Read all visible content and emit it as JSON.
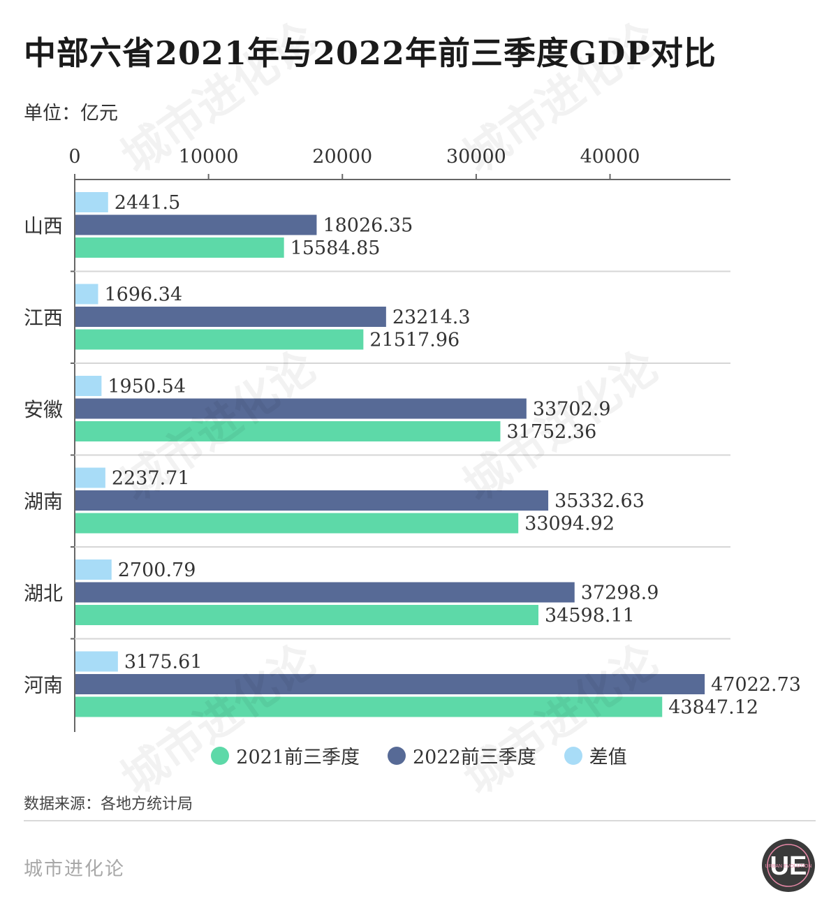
{
  "title": "中部六省2021年与2022年前三季度GDP对比",
  "unit": "单位：亿元",
  "source": "数据来源：各地方统计局",
  "brand": "城市进化论",
  "watermark_text": "城市进化论",
  "logo_text": "UE",
  "logo_ring_text": "URBAN EVOLUTION",
  "colors": {
    "y2021": "#5dd9a8",
    "y2022": "#576a96",
    "diff": "#a8dcf7",
    "axis": "#666666",
    "grid": "#d6d6d6"
  },
  "chart_data": {
    "type": "bar",
    "orientation": "horizontal",
    "categories": [
      "山西",
      "江西",
      "安徽",
      "湖南",
      "湖北",
      "河南"
    ],
    "series": [
      {
        "name": "差值",
        "values": [
          2441.5,
          1696.34,
          1950.54,
          2237.71,
          2700.79,
          3175.61
        ]
      },
      {
        "name": "2022前三季度",
        "values": [
          18026.35,
          23214.3,
          33702.9,
          35332.63,
          37298.9,
          47022.73
        ]
      },
      {
        "name": "2021前三季度",
        "values": [
          15584.85,
          21517.96,
          31752.36,
          33094.92,
          34598.11,
          43847.12
        ]
      }
    ],
    "value_labels": [
      [
        "2441.5",
        "18026.35",
        "15584.85"
      ],
      [
        "1696.34",
        "23214.3",
        "21517.96"
      ],
      [
        "1950.54",
        "33702.9",
        "31752.36"
      ],
      [
        "2237.71",
        "35332.63",
        "33094.92"
      ],
      [
        "2700.79",
        "37298.9",
        "34598.11"
      ],
      [
        "3175.61",
        "47022.73",
        "43847.12"
      ]
    ],
    "xaxis_position": "top",
    "xticks": [
      0,
      10000,
      20000,
      30000,
      40000
    ],
    "xlim": [
      0,
      49000
    ],
    "legend": [
      "2021前三季度",
      "2022前三季度",
      "差值"
    ],
    "legend_position": "bottom-center",
    "grid": true
  }
}
